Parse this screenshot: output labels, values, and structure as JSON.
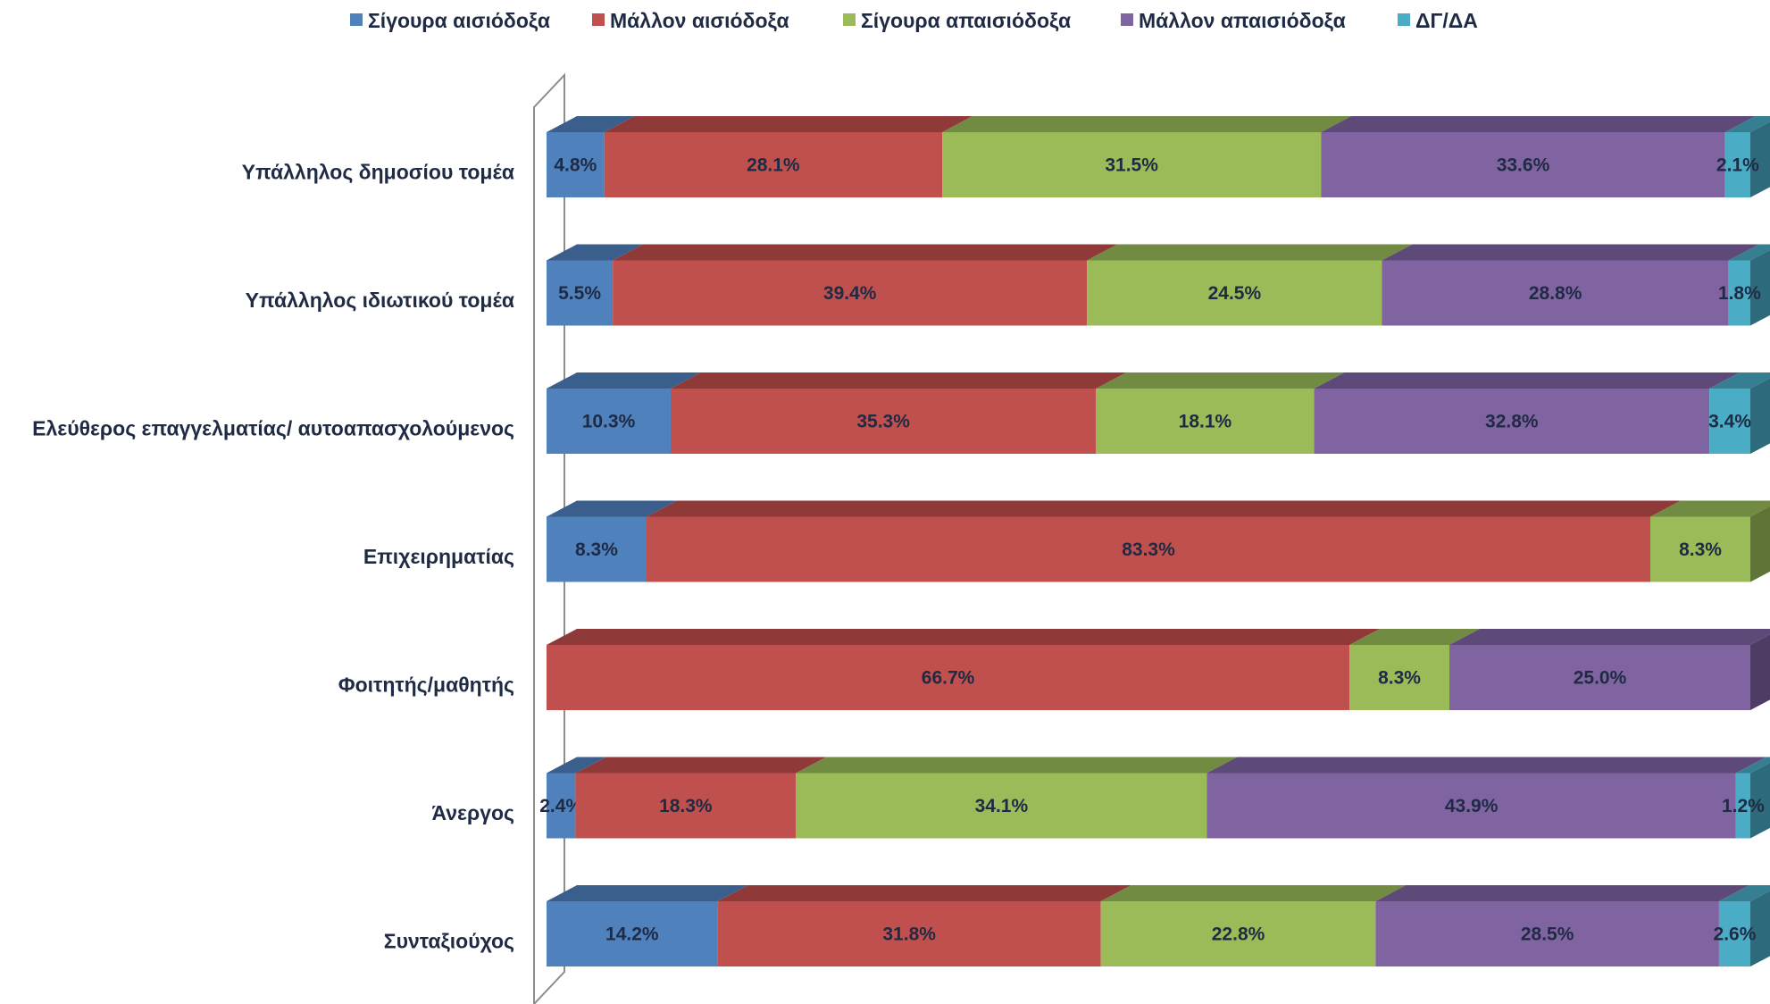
{
  "chart_data": {
    "type": "bar",
    "orientation": "horizontal",
    "stacked": true,
    "percent_stacked": true,
    "style": "3d",
    "legend_position": "top",
    "grid": false,
    "categories": [
      "Υπάλληλος δημοσίου τομέα",
      "Υπάλληλος ιδιωτικού τομέα",
      "Ελεύθερος επαγγελματίας/ αυτοαπασχολούμενος",
      "Επιχειρηματίας",
      "Φοιτητής/μαθητής",
      "Άνεργος",
      "Συνταξιούχος"
    ],
    "series": [
      {
        "name": "Σίγουρα αισιόδοξα",
        "color": "#4f81bd",
        "top_color": "#3a5f8c",
        "side_color": "#2f4f78",
        "values": [
          4.8,
          5.5,
          10.3,
          8.3,
          0,
          2.4,
          14.2
        ],
        "labels": [
          "4.8%",
          "5.5%",
          "10.3%",
          "8.3%",
          "",
          "2.4%",
          "14.2%"
        ]
      },
      {
        "name": "Μάλλον αισιόδοξα",
        "color": "#c0504d",
        "top_color": "#8f3a38",
        "side_color": "#7a302e",
        "values": [
          28.1,
          39.4,
          35.3,
          83.3,
          66.7,
          18.3,
          31.8
        ],
        "labels": [
          "28.1%",
          "39.4%",
          "35.3%",
          "83.3%",
          "66.7%",
          "18.3%",
          "31.8%"
        ]
      },
      {
        "name": "Σίγουρα απαισιόδοξα",
        "color": "#9bbb59",
        "top_color": "#728b42",
        "side_color": "#5f7536",
        "values": [
          31.5,
          24.5,
          18.1,
          8.3,
          8.3,
          34.1,
          22.8
        ],
        "labels": [
          "31.5%",
          "24.5%",
          "18.1%",
          "8.3%",
          "8.3%",
          "34.1%",
          "22.8%"
        ]
      },
      {
        "name": "Μάλλον απαισιόδοξα",
        "color": "#8064a2",
        "top_color": "#5e4a78",
        "side_color": "#4d3c63",
        "values": [
          33.6,
          28.8,
          32.8,
          0,
          25.0,
          43.9,
          28.5
        ],
        "labels": [
          "33.6%",
          "28.8%",
          "32.8%",
          "",
          "25.0%",
          "43.9%",
          "28.5%"
        ]
      },
      {
        "name": "ΔΓ/ΔΑ",
        "color": "#4bacc6",
        "top_color": "#367f93",
        "side_color": "#2d6b7c",
        "values": [
          2.1,
          1.8,
          3.4,
          0,
          0,
          1.2,
          2.6
        ],
        "labels": [
          "2.1%",
          "1.8%",
          "3.4%",
          "",
          "",
          "1.2%",
          "2.6%"
        ]
      }
    ],
    "xlim": [
      0,
      100
    ],
    "title": "",
    "xlabel": "",
    "ylabel": ""
  }
}
